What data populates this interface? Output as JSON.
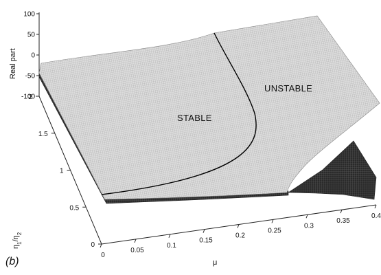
{
  "panel_label": "(b)",
  "chart_data": {
    "type": "surface3d",
    "title": "",
    "xlabel": "μ",
    "ylabel": "η1/η2",
    "ylabel_parts": {
      "base": "η",
      "sub1": "1",
      "mid": "/η",
      "sub2": "2"
    },
    "zlabel": "Real part",
    "x_ticks": [
      "0",
      "0.05",
      "0.1",
      "0.15",
      "0.2",
      "0.25",
      "0.3",
      "0.35",
      "0.4"
    ],
    "y_ticks": [
      "0",
      "0.5",
      "1",
      "1.5",
      "2"
    ],
    "z_ticks": [
      "100",
      "50",
      "0",
      "-50",
      "-100"
    ],
    "xlim": [
      0,
      0.4
    ],
    "ylim": [
      0,
      2
    ],
    "zlim": [
      -100,
      100
    ],
    "regions": [
      {
        "label": "STABLE"
      },
      {
        "label": "UNSTABLE"
      }
    ],
    "colors": {
      "surface": "#d6d6d6",
      "underside": "#2e2e2e",
      "boundary": "#000000"
    }
  }
}
